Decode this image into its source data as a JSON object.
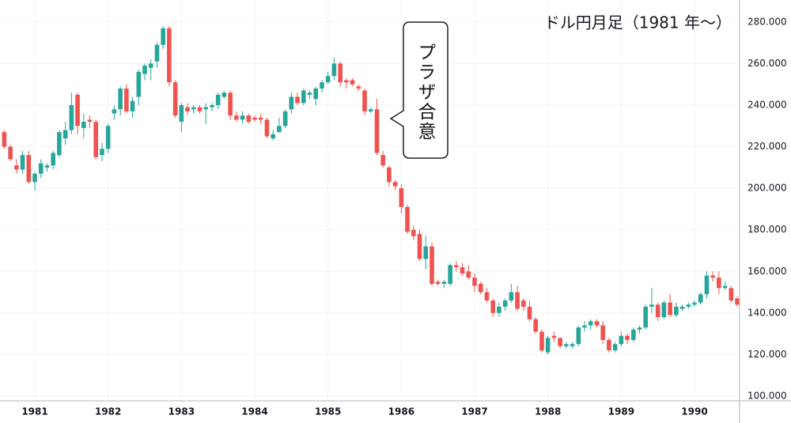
{
  "chart_data": {
    "type": "candlestick",
    "title": "ドル円月足（1981 年〜）",
    "annotation": "プラザ合意",
    "up_color": "#26a69a",
    "down_color": "#ef5350",
    "grid": true,
    "xlim": [
      1980.525,
      1990.615
    ],
    "xticks": [
      1981,
      1982,
      1983,
      1984,
      1985,
      1986,
      1987,
      1988,
      1989,
      1990
    ],
    "ylim": [
      97.7,
      290.6
    ],
    "yticks": [
      {
        "value": 100,
        "label": "100.000"
      },
      {
        "value": 120,
        "label": "120.000"
      },
      {
        "value": 140,
        "label": "140.000"
      },
      {
        "value": 160,
        "label": "160.000"
      },
      {
        "value": 180,
        "label": "180.000"
      },
      {
        "value": 200,
        "label": "200.000"
      },
      {
        "value": 220,
        "label": "220.000"
      },
      {
        "value": 240,
        "label": "240.000"
      },
      {
        "value": 260,
        "label": "260.000"
      },
      {
        "value": 280,
        "label": "280.000"
      }
    ],
    "x": [
      1980.583,
      1980.667,
      1980.75,
      1980.833,
      1980.917,
      1981,
      1981.083,
      1981.167,
      1981.25,
      1981.333,
      1981.417,
      1981.5,
      1981.583,
      1981.667,
      1981.75,
      1981.833,
      1981.917,
      1982,
      1982.083,
      1982.167,
      1982.25,
      1982.333,
      1982.417,
      1982.5,
      1982.583,
      1982.667,
      1982.75,
      1982.833,
      1982.917,
      1983,
      1983.083,
      1983.167,
      1983.25,
      1983.333,
      1983.417,
      1983.5,
      1983.583,
      1983.667,
      1983.75,
      1983.833,
      1983.917,
      1984,
      1984.083,
      1984.167,
      1984.25,
      1984.333,
      1984.417,
      1984.5,
      1984.583,
      1984.667,
      1984.75,
      1984.833,
      1984.917,
      1985,
      1985.083,
      1985.167,
      1985.25,
      1985.333,
      1985.417,
      1985.5,
      1985.583,
      1985.667,
      1985.75,
      1985.833,
      1985.917,
      1986,
      1986.083,
      1986.167,
      1986.25,
      1986.333,
      1986.417,
      1986.5,
      1986.583,
      1986.667,
      1986.75,
      1986.833,
      1986.917,
      1987,
      1987.083,
      1987.167,
      1987.25,
      1987.333,
      1987.417,
      1987.5,
      1987.583,
      1987.667,
      1987.75,
      1987.833,
      1987.917,
      1988,
      1988.083,
      1988.167,
      1988.25,
      1988.333,
      1988.417,
      1988.5,
      1988.583,
      1988.667,
      1988.75,
      1988.833,
      1988.917,
      1989,
      1989.083,
      1989.167,
      1989.25,
      1989.333,
      1989.417,
      1989.5,
      1989.583,
      1989.667,
      1989.75,
      1989.833,
      1989.917,
      1990,
      1990.083,
      1990.167,
      1990.25,
      1990.333,
      1990.417,
      1990.5,
      1990.583
    ],
    "open": [
      227,
      220,
      211,
      209,
      216,
      203,
      207,
      210,
      211,
      216,
      224,
      228,
      245,
      229,
      233,
      232,
      216,
      219,
      236,
      238,
      248,
      237,
      244,
      255,
      258,
      261,
      269,
      277,
      251,
      232,
      239,
      238,
      239,
      238,
      239,
      240,
      244,
      246,
      235,
      233,
      235,
      234,
      234,
      233,
      224,
      227,
      230,
      238,
      244,
      241,
      245,
      243,
      248,
      251,
      254,
      260,
      252,
      252,
      249,
      247,
      237,
      238,
      216,
      210,
      203,
      200,
      191,
      180,
      178,
      166,
      172,
      155,
      154,
      154,
      163,
      162,
      160,
      157,
      154,
      150,
      146,
      140,
      143,
      146,
      150,
      146,
      143,
      137,
      131,
      121,
      129,
      128,
      124,
      124,
      125,
      133,
      134,
      136,
      134,
      127,
      122,
      125,
      129,
      127,
      132,
      133,
      143,
      144,
      138,
      145,
      139,
      142,
      143,
      144,
      145,
      149,
      158,
      157,
      152,
      152,
      147
    ],
    "high": [
      228,
      221,
      214,
      218,
      218,
      208,
      214,
      212,
      218,
      228,
      232,
      246,
      246,
      236,
      235,
      233,
      222,
      231,
      240,
      249,
      250,
      244,
      257,
      260,
      262,
      270,
      278,
      278,
      252,
      241,
      241,
      240,
      240,
      241,
      241,
      246,
      247,
      247,
      237,
      237,
      236,
      235,
      236,
      234,
      228,
      234,
      238,
      246,
      246,
      248,
      247,
      249,
      252,
      256,
      263,
      261,
      253,
      253,
      250,
      248,
      239,
      243,
      218,
      211,
      204,
      202,
      192,
      182,
      180,
      177,
      174,
      156,
      156,
      164,
      165,
      164,
      163,
      159,
      155,
      152,
      147,
      145,
      147,
      154,
      153,
      147,
      146,
      138,
      132,
      129,
      131,
      128,
      126,
      126,
      134,
      136,
      137,
      137,
      136,
      128,
      126,
      131,
      130,
      133,
      134,
      144,
      152,
      145,
      146,
      149,
      145,
      144,
      145,
      146,
      150,
      160,
      160,
      160,
      155,
      153,
      148
    ],
    "low": [
      219,
      213,
      207,
      207,
      202,
      199,
      205,
      208,
      209,
      215,
      221,
      226,
      226,
      224,
      229,
      214,
      213,
      217,
      233,
      235,
      236,
      234,
      240,
      252,
      252,
      258,
      267,
      249,
      234,
      227,
      235,
      236,
      236,
      231,
      237,
      238,
      243,
      233,
      232,
      231,
      231,
      232,
      231,
      224,
      223,
      227,
      229,
      236,
      240,
      240,
      243,
      240,
      246,
      250,
      252,
      249,
      248,
      249,
      247,
      235,
      236,
      216,
      210,
      201,
      199,
      188,
      178,
      175,
      165,
      161,
      153,
      153,
      152,
      153,
      160,
      158,
      156,
      150,
      149,
      145,
      138,
      138,
      141,
      145,
      141,
      141,
      136,
      130,
      121,
      120,
      126,
      123,
      123,
      123,
      124,
      131,
      132,
      133,
      125,
      121,
      121,
      124,
      125,
      126,
      130,
      132,
      140,
      136,
      137,
      138,
      138,
      141,
      142,
      143,
      144,
      147,
      155,
      149,
      151,
      145,
      143
    ],
    "close": [
      220,
      214,
      209,
      216,
      203,
      207,
      212,
      211,
      217,
      227,
      228,
      240,
      230,
      232,
      232,
      215,
      219,
      230,
      238,
      248,
      237,
      242,
      256,
      259,
      260,
      269,
      277,
      251,
      235,
      240,
      237,
      239,
      237,
      239,
      240,
      245,
      246,
      235,
      233,
      235,
      232,
      233,
      233,
      225,
      226,
      230,
      237,
      244,
      241,
      247,
      246,
      248,
      251,
      254,
      260,
      251,
      251,
      250,
      248,
      237,
      238,
      217,
      211,
      203,
      201,
      191,
      179,
      177,
      166,
      172,
      154,
      154,
      155,
      163,
      162,
      159,
      157,
      153,
      150,
      146,
      140,
      143,
      146,
      150,
      142,
      143,
      137,
      131,
      122,
      128,
      128,
      124,
      125,
      125,
      133,
      134,
      136,
      134,
      127,
      122,
      125,
      129,
      127,
      132,
      133,
      143,
      144,
      138,
      145,
      139,
      143,
      143,
      144,
      145,
      149,
      158,
      157,
      152,
      153,
      146,
      144
    ]
  }
}
